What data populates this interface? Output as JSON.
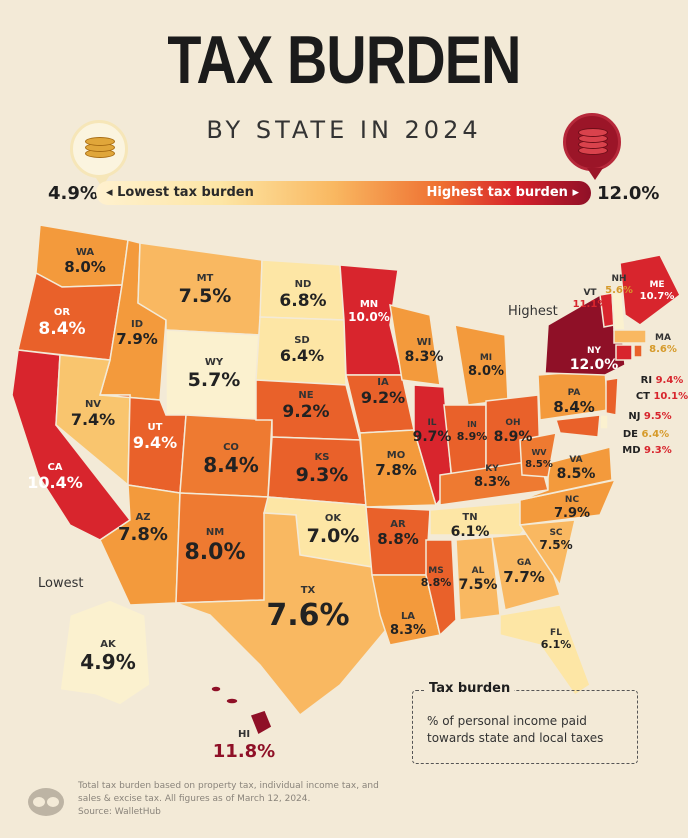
{
  "title": "TAX BURDEN",
  "subtitle": "BY STATE IN 2024",
  "legend": {
    "min": "4.9%",
    "max": "12.0%",
    "low_label": "Lowest tax burden",
    "high_label": "Highest tax burden"
  },
  "callouts": {
    "highest": "Highest",
    "lowest": "Lowest"
  },
  "info_box": {
    "title": "Tax burden",
    "text": "% of personal income paid towards state and local taxes"
  },
  "footnote": "Total tax burden based on property tax, individual income tax, and sales & excise tax. All figures as of March 12, 2024.",
  "source": "Source: WalletHub",
  "colors": {
    "lowest": "#fbf1cf",
    "low": "#f9c56e",
    "mid": "#f39a3c",
    "high": "#e9612a",
    "higher": "#d8252d",
    "highest": "#8f1027"
  },
  "states": [
    {
      "abbr": "WA",
      "value": "8.0%"
    },
    {
      "abbr": "OR",
      "value": "8.4%"
    },
    {
      "abbr": "CA",
      "value": "10.4%"
    },
    {
      "abbr": "ID",
      "value": "7.9%"
    },
    {
      "abbr": "NV",
      "value": "7.4%"
    },
    {
      "abbr": "MT",
      "value": "7.5%"
    },
    {
      "abbr": "WY",
      "value": "5.7%"
    },
    {
      "abbr": "UT",
      "value": "9.4%"
    },
    {
      "abbr": "AZ",
      "value": "7.8%"
    },
    {
      "abbr": "CO",
      "value": "8.4%"
    },
    {
      "abbr": "NM",
      "value": "8.0%"
    },
    {
      "abbr": "ND",
      "value": "6.8%"
    },
    {
      "abbr": "SD",
      "value": "6.4%"
    },
    {
      "abbr": "NE",
      "value": "9.2%"
    },
    {
      "abbr": "KS",
      "value": "9.3%"
    },
    {
      "abbr": "OK",
      "value": "7.0%"
    },
    {
      "abbr": "TX",
      "value": "7.6%"
    },
    {
      "abbr": "MN",
      "value": "10.0%"
    },
    {
      "abbr": "IA",
      "value": "9.2%"
    },
    {
      "abbr": "MO",
      "value": "7.8%"
    },
    {
      "abbr": "AR",
      "value": "8.8%"
    },
    {
      "abbr": "LA",
      "value": "8.3%"
    },
    {
      "abbr": "WI",
      "value": "8.3%"
    },
    {
      "abbr": "IL",
      "value": "9.7%"
    },
    {
      "abbr": "MI",
      "value": "8.0%"
    },
    {
      "abbr": "IN",
      "value": "8.9%"
    },
    {
      "abbr": "OH",
      "value": "8.9%"
    },
    {
      "abbr": "KY",
      "value": "8.3%"
    },
    {
      "abbr": "TN",
      "value": "6.1%"
    },
    {
      "abbr": "MS",
      "value": "8.8%"
    },
    {
      "abbr": "AL",
      "value": "7.5%"
    },
    {
      "abbr": "GA",
      "value": "7.7%"
    },
    {
      "abbr": "FL",
      "value": "6.1%"
    },
    {
      "abbr": "SC",
      "value": "7.5%"
    },
    {
      "abbr": "NC",
      "value": "7.9%"
    },
    {
      "abbr": "VA",
      "value": "8.5%"
    },
    {
      "abbr": "WV",
      "value": "8.5%"
    },
    {
      "abbr": "PA",
      "value": "8.4%"
    },
    {
      "abbr": "NY",
      "value": "12.0%"
    },
    {
      "abbr": "VT",
      "value": "11.1%"
    },
    {
      "abbr": "NH",
      "value": "5.6%"
    },
    {
      "abbr": "ME",
      "value": "10.7%"
    },
    {
      "abbr": "MA",
      "value": "8.6%"
    },
    {
      "abbr": "RI",
      "value": "9.4%"
    },
    {
      "abbr": "CT",
      "value": "10.1%"
    },
    {
      "abbr": "NJ",
      "value": "9.5%"
    },
    {
      "abbr": "DE",
      "value": "6.4%"
    },
    {
      "abbr": "MD",
      "value": "9.3%"
    },
    {
      "abbr": "AK",
      "value": "4.9%"
    },
    {
      "abbr": "HI",
      "value": "11.8%"
    }
  ]
}
